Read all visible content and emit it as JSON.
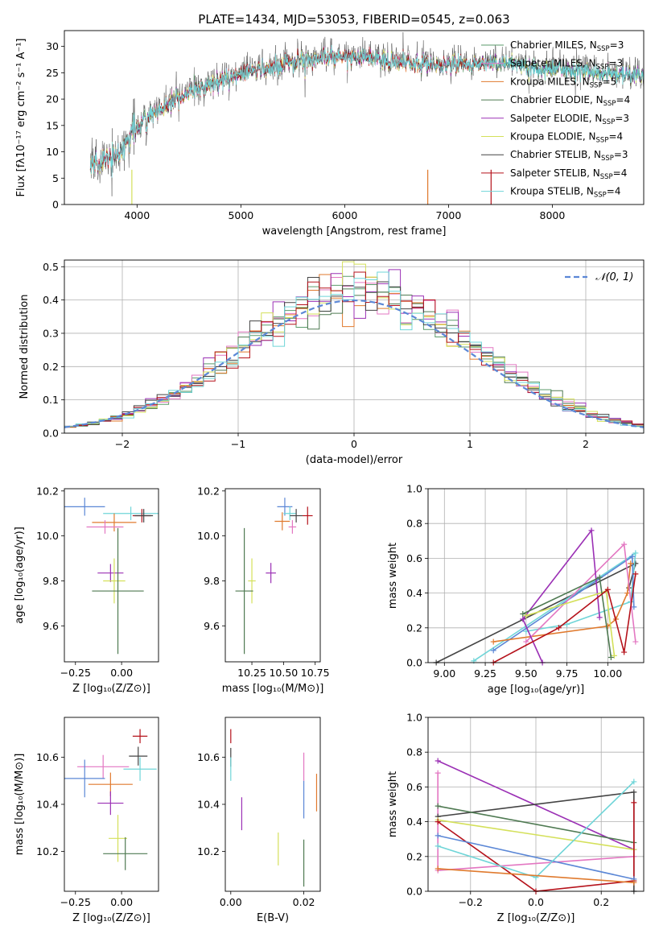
{
  "figure_title": "PLATE=1434, MJD=53053, FIBERID=0545, z=0.063",
  "colors": {
    "Chabrier MILES": "#5b9b6b",
    "Salpeter MILES": "#e377c2",
    "Kroupa MILES": "#e07a2e",
    "Chabrier ELODIE": "#4f7a52",
    "Salpeter ELODIE": "#9b30b5",
    "Kroupa ELODIE": "#d4e05a",
    "Chabrier STELIB": "#444444",
    "Salpeter STELIB": "#b5121b",
    "Kroupa STELIB": "#6fd5d8",
    "blue": "#5b87d6",
    "normal": "#5b87d6"
  },
  "chart_data": [
    {
      "id": "spectrum",
      "type": "line",
      "title": "PLATE=1434, MJD=53053, FIBERID=0545, z=0.063",
      "xlabel": "wavelength [Angstrom, rest frame]",
      "ylabel": "Flux [fλ10⁻¹⁷ erg cm⁻² s⁻¹ A⁻¹]",
      "xlim": [
        3300,
        8880
      ],
      "ylim": [
        0,
        33
      ],
      "xticks": [
        4000,
        5000,
        6000,
        7000,
        8000
      ],
      "yticks": [
        0,
        5,
        10,
        15,
        20,
        25,
        30
      ],
      "legend_position": "top-right",
      "continuum": [
        [
          3550,
          7
        ],
        [
          3700,
          9
        ],
        [
          3850,
          10
        ],
        [
          3950,
          14
        ],
        [
          4100,
          17
        ],
        [
          4300,
          19
        ],
        [
          4500,
          21.5
        ],
        [
          4800,
          24
        ],
        [
          5000,
          25
        ],
        [
          5200,
          26
        ],
        [
          5500,
          27.5
        ],
        [
          5800,
          28.5
        ],
        [
          6000,
          28.5
        ],
        [
          6300,
          28
        ],
        [
          6600,
          27
        ],
        [
          7000,
          27
        ],
        [
          7400,
          27
        ],
        [
          7600,
          27.5
        ],
        [
          7900,
          26
        ],
        [
          8200,
          26
        ],
        [
          8600,
          25
        ],
        [
          8880,
          25
        ]
      ],
      "series": [
        {
          "name": "Chabrier MILES, Nₛₛₚ=3",
          "label": "Chabrier MILES, N",
          "sub": "SSP",
          "suffix": "=3"
        },
        {
          "name": "Salpeter MILES, Nₛₛₚ=3",
          "label": "Salpeter MILES, N",
          "sub": "SSP",
          "suffix": "=3"
        },
        {
          "name": "Kroupa MILES, Nₛₛₚ=5",
          "label": "Kroupa MILES, N",
          "sub": "SSP",
          "suffix": "=5"
        },
        {
          "name": "Chabrier ELODIE, Nₛₛₚ=4",
          "label": "Chabrier ELODIE, N",
          "sub": "SSP",
          "suffix": "=4"
        },
        {
          "name": "Salpeter ELODIE, Nₛₛₚ=3",
          "label": "Salpeter ELODIE, N",
          "sub": "SSP",
          "suffix": "=3"
        },
        {
          "name": "Kroupa ELODIE, Nₛₛₚ=4",
          "label": "Kroupa ELODIE, N",
          "sub": "SSP",
          "suffix": "=4"
        },
        {
          "name": "Chabrier STELIB, Nₛₛₚ=3",
          "label": "Chabrier STELIB, N",
          "sub": "SSP",
          "suffix": "=3"
        },
        {
          "name": "Salpeter STELIB, Nₛₛₚ=4",
          "label": "Salpeter STELIB, N",
          "sub": "SSP",
          "suffix": "=4"
        },
        {
          "name": "Kroupa STELIB, Nₛₛₚ=4",
          "label": "Kroupa STELIB, N",
          "sub": "SSP",
          "suffix": "=4"
        }
      ]
    },
    {
      "id": "residuals",
      "type": "histogram",
      "xlabel": "(data-model)/error",
      "ylabel": "Normed distribution",
      "xlim": [
        -2.5,
        2.5
      ],
      "ylim": [
        0,
        0.52
      ],
      "xticks": [
        -2,
        -1,
        0,
        1,
        2
      ],
      "yticks": [
        0.0,
        0.1,
        0.2,
        0.3,
        0.4,
        0.5
      ],
      "bin_width": 0.1,
      "grid": true,
      "legend": "𝒩(0, 1)",
      "legend_position": "top-right"
    },
    {
      "id": "age_vs_Z",
      "type": "errorbar",
      "xlabel": "Z [log₁₀(Z/Z⊙)]",
      "ylabel": "age  [log₁₀(age/yr)]",
      "xlim": [
        -0.31,
        0.2
      ],
      "ylim": [
        9.44,
        10.21
      ],
      "xticks": [
        -0.25,
        0.0
      ],
      "yticks": [
        9.6,
        9.8,
        10.0,
        10.2
      ],
      "points": [
        {
          "c": "blue",
          "x": -0.2,
          "xe": 0.11,
          "y": 10.13,
          "ye": 0.04
        },
        {
          "c": "Kroupa STELIB",
          "x": 0.05,
          "xe": 0.15,
          "y": 10.1,
          "ye": 0.03
        },
        {
          "c": "Salpeter STELIB",
          "x": 0.11,
          "xe": 0.05,
          "y": 10.09,
          "ye": 0.03
        },
        {
          "c": "Chabrier STELIB",
          "x": 0.12,
          "xe": 0.05,
          "y": 10.09,
          "ye": 0.03
        },
        {
          "c": "Kroupa MILES",
          "x": -0.04,
          "xe": 0.12,
          "y": 10.06,
          "ye": 0.04
        },
        {
          "c": "Salpeter MILES",
          "x": -0.09,
          "xe": 0.1,
          "y": 10.04,
          "ye": 0.03
        },
        {
          "c": "Salpeter ELODIE",
          "x": -0.06,
          "xe": 0.07,
          "y": 9.835,
          "ye": 0.04
        },
        {
          "c": "Kroupa ELODIE",
          "x": -0.04,
          "xe": 0.06,
          "y": 9.8,
          "ye": 0.1
        },
        {
          "c": "Chabrier ELODIE",
          "x": -0.02,
          "xe": 0.14,
          "y": 9.755,
          "ye": 0.28
        }
      ]
    },
    {
      "id": "age_vs_mass",
      "type": "errorbar",
      "xlabel": "mass [log₁₀(M/M⊙)]",
      "ylabel": "",
      "xlim": [
        10.04,
        10.79
      ],
      "ylim": [
        9.44,
        10.21
      ],
      "xticks": [
        10.25,
        10.5,
        10.75
      ],
      "yticks": [
        9.6,
        9.8,
        10.0,
        10.2
      ],
      "points": [
        {
          "c": "blue",
          "x": 10.51,
          "xe": 0.06,
          "y": 10.13,
          "ye": 0.04
        },
        {
          "c": "Kroupa STELIB",
          "x": 10.55,
          "xe": 0.05,
          "y": 10.1,
          "ye": 0.03
        },
        {
          "c": "Chabrier STELIB",
          "x": 10.6,
          "xe": 0.05,
          "y": 10.09,
          "ye": 0.03
        },
        {
          "c": "Salpeter STELIB",
          "x": 10.69,
          "xe": 0.04,
          "y": 10.09,
          "ye": 0.04
        },
        {
          "c": "Kroupa MILES",
          "x": 10.49,
          "xe": 0.06,
          "y": 10.065,
          "ye": 0.04
        },
        {
          "c": "Salpeter MILES",
          "x": 10.57,
          "xe": 0.03,
          "y": 10.04,
          "ye": 0.03
        },
        {
          "c": "Salpeter ELODIE",
          "x": 10.4,
          "xe": 0.04,
          "y": 9.835,
          "ye": 0.045
        },
        {
          "c": "Kroupa ELODIE",
          "x": 10.25,
          "xe": 0.03,
          "y": 9.8,
          "ye": 0.1
        },
        {
          "c": "Chabrier ELODIE",
          "x": 10.19,
          "xe": 0.07,
          "y": 9.755,
          "ye": 0.28
        }
      ]
    },
    {
      "id": "weight_vs_age",
      "type": "line",
      "xlabel": "age  [log₁₀(age/yr)]",
      "ylabel": "mass weight",
      "xlim": [
        8.9,
        10.22
      ],
      "ylim": [
        0,
        1
      ],
      "xticks": [
        9.0,
        9.25,
        9.5,
        9.75,
        10.0
      ],
      "yticks": [
        0.0,
        0.2,
        0.4,
        0.6,
        0.8,
        1.0
      ],
      "grid": true,
      "series": [
        {
          "c": "Chabrier STELIB",
          "points": [
            [
              8.95,
              0.0
            ],
            [
              10.17,
              0.57
            ],
            [
              10.13,
              0.43
            ]
          ]
        },
        {
          "c": "Kroupa STELIB",
          "points": [
            [
              9.18,
              0.01
            ],
            [
              10.17,
              0.63
            ],
            [
              10.14,
              0.35
            ],
            [
              9.75,
              0.22
            ],
            [
              9.5,
              0.18
            ]
          ]
        },
        {
          "c": "blue",
          "points": [
            [
              9.3,
              0.07
            ],
            [
              10.15,
              0.61
            ],
            [
              10.16,
              0.32
            ]
          ]
        },
        {
          "c": "Kroupa MILES",
          "points": [
            [
              9.3,
              0.12
            ],
            [
              10.0,
              0.21
            ],
            [
              10.05,
              0.25
            ],
            [
              10.12,
              0.4
            ],
            [
              10.14,
              0.57
            ]
          ]
        },
        {
          "c": "Salpeter MILES",
          "points": [
            [
              9.5,
              0.12
            ],
            [
              10.1,
              0.68
            ],
            [
              10.17,
              0.12
            ]
          ]
        },
        {
          "c": "Salpeter ELODIE",
          "points": [
            [
              9.6,
              0.0
            ],
            [
              9.48,
              0.25
            ],
            [
              9.9,
              0.76
            ],
            [
              9.95,
              0.26
            ]
          ]
        },
        {
          "c": "Kroupa ELODIE",
          "points": [
            [
              9.5,
              0.27
            ],
            [
              9.99,
              0.41
            ],
            [
              10.04,
              0.04
            ]
          ]
        },
        {
          "c": "Chabrier ELODIE",
          "points": [
            [
              9.48,
              0.28
            ],
            [
              9.95,
              0.49
            ],
            [
              10.02,
              0.03
            ]
          ]
        },
        {
          "c": "Salpeter STELIB",
          "points": [
            [
              9.3,
              0.0
            ],
            [
              9.7,
              0.2
            ],
            [
              10.0,
              0.42
            ],
            [
              10.1,
              0.06
            ],
            [
              10.17,
              0.51
            ]
          ]
        }
      ]
    },
    {
      "id": "mass_vs_Z",
      "type": "errorbar",
      "xlabel": "Z [log₁₀(Z/Z⊙)]",
      "ylabel": "mass [log₁₀(M/M⊙)]",
      "xlim": [
        -0.31,
        0.2
      ],
      "ylim": [
        10.03,
        10.77
      ],
      "xticks": [
        -0.25,
        0.0
      ],
      "yticks": [
        10.2,
        10.4,
        10.6
      ],
      "points": [
        {
          "c": "Salpeter STELIB",
          "x": 0.1,
          "xe": 0.04,
          "y": 10.69,
          "ye": 0.03
        },
        {
          "c": "Chabrier STELIB",
          "x": 0.09,
          "xe": 0.05,
          "y": 10.605,
          "ye": 0.04
        },
        {
          "c": "Salpeter MILES",
          "x": -0.1,
          "xe": 0.14,
          "y": 10.56,
          "ye": 0.05
        },
        {
          "c": "Kroupa STELIB",
          "x": 0.1,
          "xe": 0.09,
          "y": 10.55,
          "ye": 0.05
        },
        {
          "c": "blue",
          "x": -0.2,
          "xe": 0.11,
          "y": 10.51,
          "ye": 0.08
        },
        {
          "c": "Kroupa MILES",
          "x": -0.06,
          "xe": 0.12,
          "y": 10.485,
          "ye": 0.05
        },
        {
          "c": "Salpeter ELODIE",
          "x": -0.06,
          "xe": 0.07,
          "y": 10.405,
          "ye": 0.05
        },
        {
          "c": "Kroupa ELODIE",
          "x": -0.02,
          "xe": 0.05,
          "y": 10.255,
          "ye": 0.1
        },
        {
          "c": "Chabrier ELODIE",
          "x": 0.02,
          "xe": 0.12,
          "y": 10.19,
          "ye": 0.07
        }
      ]
    },
    {
      "id": "mass_vs_EBV",
      "type": "errorbar",
      "xlabel": "E(B-V)",
      "ylabel": "",
      "xlim": [
        -0.0015,
        0.0245
      ],
      "ylim": [
        10.03,
        10.77
      ],
      "xticks": [
        0.0,
        0.02
      ],
      "xtick_labels": [
        "0.00",
        "0.02"
      ],
      "yticks": [
        10.2,
        10.4,
        10.6
      ],
      "points": [
        {
          "c": "Salpeter STELIB",
          "x": 0.0,
          "xe": 0,
          "y": 10.69,
          "ye": 0.03
        },
        {
          "c": "Chabrier STELIB",
          "x": 0.0,
          "xe": 0,
          "y": 10.6,
          "ye": 0.04
        },
        {
          "c": "Kroupa STELIB",
          "x": 0.0,
          "xe": 0,
          "y": 10.55,
          "ye": 0.05
        },
        {
          "c": "Salpeter ELODIE",
          "x": 0.003,
          "xe": 0,
          "y": 10.36,
          "ye": 0.07
        },
        {
          "c": "Salpeter MILES",
          "x": 0.02,
          "xe": 0,
          "y": 10.56,
          "ye": 0.06
        },
        {
          "c": "blue",
          "x": 0.02,
          "xe": 0,
          "y": 10.42,
          "ye": 0.08
        },
        {
          "c": "Kroupa MILES",
          "x": 0.0235,
          "xe": 0,
          "y": 10.45,
          "ye": 0.08
        },
        {
          "c": "Kroupa ELODIE",
          "x": 0.013,
          "xe": 0,
          "y": 10.21,
          "ye": 0.07
        },
        {
          "c": "Chabrier ELODIE",
          "x": 0.02,
          "xe": 0,
          "y": 10.15,
          "ye": 0.1
        }
      ]
    },
    {
      "id": "weight_vs_Z",
      "type": "line",
      "xlabel": "Z [log₁₀(Z/Z⊙)]",
      "ylabel": "mass weight",
      "xlim": [
        -0.33,
        0.33
      ],
      "ylim": [
        0,
        1
      ],
      "xticks": [
        -0.2,
        0.0,
        0.2
      ],
      "yticks": [
        0.0,
        0.2,
        0.4,
        0.6,
        0.8,
        1.0
      ],
      "grid": true,
      "series": [
        {
          "c": "Salpeter ELODIE",
          "points": [
            [
              -0.3,
              0.75
            ],
            [
              0.3,
              0.24
            ]
          ]
        },
        {
          "c": "Salpeter MILES",
          "points": [
            [
              -0.3,
              0.68
            ],
            [
              -0.3,
              0.12
            ],
            [
              0.3,
              0.2
            ]
          ]
        },
        {
          "c": "Chabrier STELIB",
          "points": [
            [
              0.3,
              0.0
            ],
            [
              0.3,
              0.57
            ],
            [
              -0.3,
              0.43
            ]
          ]
        },
        {
          "c": "Chabrier ELODIE",
          "points": [
            [
              -0.3,
              0.49
            ],
            [
              0.3,
              0.28
            ]
          ]
        },
        {
          "c": "Kroupa ELODIE",
          "points": [
            [
              -0.3,
              0.41
            ],
            [
              0.3,
              0.24
            ]
          ]
        },
        {
          "c": "Salpeter STELIB",
          "points": [
            [
              0.3,
              0.51
            ],
            [
              0.3,
              0.06
            ],
            [
              0.0,
              0.0
            ],
            [
              -0.3,
              0.4
            ]
          ]
        },
        {
          "c": "blue",
          "points": [
            [
              -0.3,
              0.32
            ],
            [
              0.3,
              0.07
            ]
          ]
        },
        {
          "c": "Kroupa STELIB",
          "points": [
            [
              -0.3,
              0.26
            ],
            [
              0.0,
              0.08
            ],
            [
              0.3,
              0.63
            ]
          ]
        },
        {
          "c": "Kroupa MILES",
          "points": [
            [
              -0.3,
              0.13
            ],
            [
              0.3,
              0.05
            ]
          ]
        }
      ]
    }
  ]
}
